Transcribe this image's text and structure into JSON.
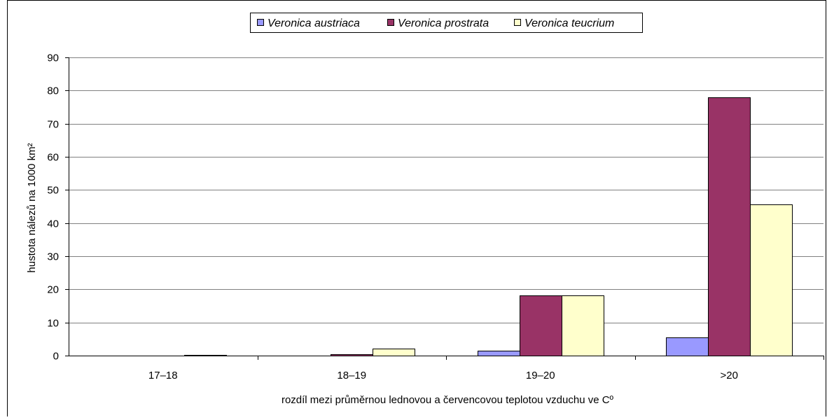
{
  "chart_data": {
    "type": "bar",
    "title": "",
    "xlabel": "rozdíl mezi průměrnou lednovou a červencovou teplotou vzduchu ve Cº",
    "ylabel": "hustota nálezů na 1000 km²",
    "categories": [
      "17–18",
      "18–19",
      "19–20",
      ">20"
    ],
    "ylim": [
      0,
      90
    ],
    "yticks": [
      0,
      10,
      20,
      30,
      40,
      50,
      60,
      70,
      80,
      90
    ],
    "grid": true,
    "legend_position": "top",
    "series": [
      {
        "name": "Veronica austriaca",
        "color": "#9999FF",
        "values": [
          0,
          0,
          1.5,
          5.5
        ]
      },
      {
        "name": "Veronica prostrata",
        "color": "#993366",
        "values": [
          0,
          0.5,
          18.2,
          78
        ]
      },
      {
        "name": "Veronica teucrium",
        "color": "#FFFFCC",
        "values": [
          0.3,
          2.1,
          18.2,
          45.6
        ]
      }
    ]
  }
}
